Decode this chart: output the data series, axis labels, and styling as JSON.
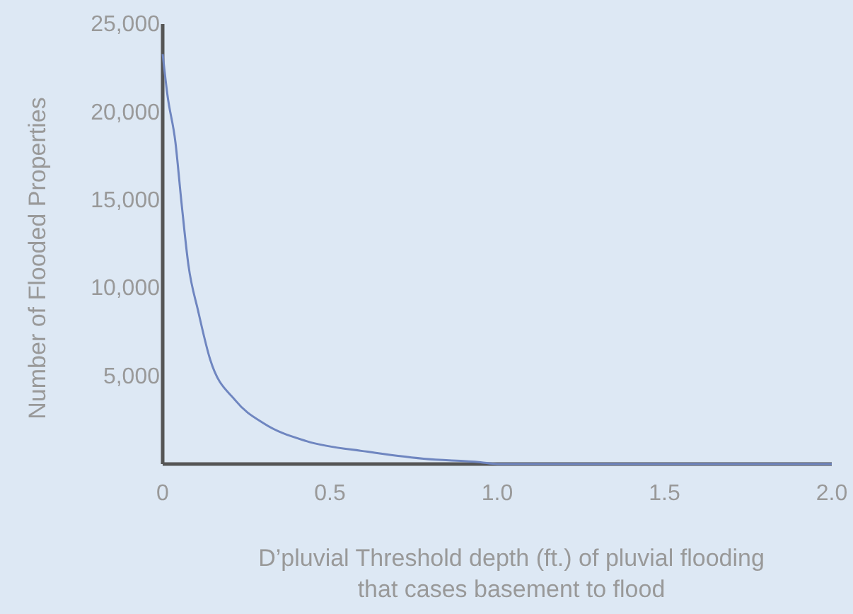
{
  "chart_data": {
    "type": "line",
    "xlabel": "D’pluvial Threshold depth (ft.) of pluvial flooding\nthat cases basement to flood",
    "ylabel": "Number of Flooded Properties",
    "x": [
      0,
      0.014,
      0.038,
      0.056,
      0.077,
      0.106,
      0.141,
      0.218,
      0.303,
      0.43,
      0.613,
      0.78,
      0.95,
      1.0,
      1.5,
      2.0
    ],
    "series": [
      {
        "color": "#6f86c0",
        "values": [
          23300,
          21000,
          18300,
          14900,
          11300,
          8700,
          6000,
          3600,
          2300,
          1300,
          700,
          300,
          100,
          0,
          0,
          0
        ]
      }
    ],
    "xlim": [
      0,
      2
    ],
    "xticks": [
      0,
      0.5,
      {
        "value": 1,
        "label": "1.0"
      },
      1.5,
      {
        "value": 2,
        "label": "2.0"
      }
    ],
    "ylim": [
      0,
      25000
    ],
    "yticks": [
      {
        "value": 5000,
        "label": "5,000"
      },
      {
        "value": 10000,
        "label": "10,000"
      },
      {
        "value": 15000,
        "label": "15,000"
      },
      {
        "value": 20000,
        "label": "20,000"
      },
      {
        "value": 25000,
        "label": "25,000"
      }
    ],
    "grid": false,
    "marker": "none",
    "line_style": "solid"
  }
}
